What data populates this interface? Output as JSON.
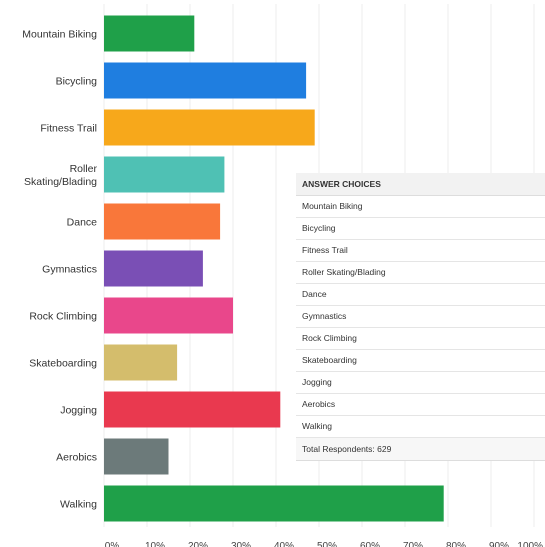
{
  "chart_data": {
    "type": "bar",
    "orientation": "horizontal",
    "categories": [
      "Mountain Biking",
      "Bicycling",
      "Fitness Trail",
      "Roller Skating/Blading",
      "Dance",
      "Gymnastics",
      "Rock Climbing",
      "Skateboarding",
      "Jogging",
      "Aerobics",
      "Walking"
    ],
    "category_lines": [
      [
        "Mountain Biking"
      ],
      [
        "Bicycling"
      ],
      [
        "Fitness Trail"
      ],
      [
        "Roller",
        "Skating/Blading"
      ],
      [
        "Dance"
      ],
      [
        "Gymnastics"
      ],
      [
        "Rock Climbing"
      ],
      [
        "Skateboarding"
      ],
      [
        "Jogging"
      ],
      [
        "Aerobics"
      ],
      [
        "Walking"
      ]
    ],
    "values": [
      21,
      47,
      49,
      28,
      27,
      23,
      30,
      17,
      41,
      15,
      79
    ],
    "colors": [
      "#1fa049",
      "#1f7ee0",
      "#f7a81b",
      "#4fc1b4",
      "#f9773a",
      "#7a4fb5",
      "#e9478b",
      "#d4bd6c",
      "#e9394f",
      "#6c7a7a",
      "#1fa049"
    ],
    "x_ticks": [
      "0%",
      "10%",
      "20%",
      "30%",
      "40%",
      "50%",
      "60%",
      "70%",
      "80%",
      "90%",
      "100%"
    ],
    "xlim": [
      0,
      100
    ],
    "grid": true,
    "title": "",
    "xlabel": "",
    "ylabel": ""
  },
  "answer_table": {
    "header": "ANSWER CHOICES",
    "rows": [
      "Mountain Biking",
      "Bicycling",
      "Fitness Trail",
      "Roller Skating/Blading",
      "Dance",
      "Gymnastics",
      "Rock Climbing",
      "Skateboarding",
      "Jogging",
      "Aerobics",
      "Walking"
    ],
    "footer": "Total Respondents: 629"
  }
}
